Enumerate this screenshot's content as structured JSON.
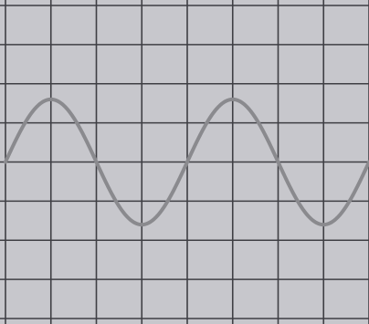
{
  "chart_data": {
    "type": "line",
    "title": "",
    "xlabel": "",
    "ylabel": "",
    "grid": true,
    "grid_divisions": {
      "x": 8,
      "y": 8
    },
    "xlim": [
      0,
      8
    ],
    "ylim": [
      -4,
      4
    ],
    "series": [
      {
        "function": "sine",
        "amplitude": 1.6,
        "period": 4,
        "phase_start": 0,
        "x": [
          0,
          0.5,
          1,
          1.5,
          2,
          2.5,
          3,
          3.5,
          4,
          4.5,
          5,
          5.5,
          6,
          6.5,
          7,
          7.5,
          8
        ],
        "y": [
          0,
          1.13,
          1.6,
          1.13,
          0,
          -1.13,
          -1.6,
          -1.13,
          0,
          1.13,
          1.6,
          1.13,
          0,
          -1.13,
          -1.6,
          -1.13,
          0
        ]
      }
    ]
  },
  "colors": {
    "screen": "#c7c7cc",
    "grid": "#3f3f44",
    "trace": "#8a8a8e",
    "frame": "#2e2e33"
  }
}
